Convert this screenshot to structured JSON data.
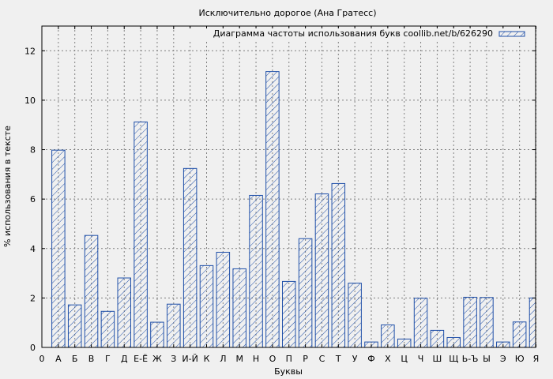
{
  "chart_data": {
    "type": "bar",
    "title": "Исключительно дорогое (Ана Гратесс)",
    "xlabel": "Буквы",
    "ylabel": "% использования в тексте",
    "legend": "Диаграмма частоты использования букв coollib.net/b/626290",
    "legend_position": "top-right",
    "grid": true,
    "ylim": [
      0,
      13
    ],
    "yticks": [
      0,
      2,
      4,
      6,
      8,
      10,
      12
    ],
    "x_zero_label": "0",
    "categories": [
      "А",
      "Б",
      "В",
      "Г",
      "Д",
      "Е-Ё",
      "Ж",
      "З",
      "И-Й",
      "К",
      "Л",
      "М",
      "Н",
      "О",
      "П",
      "Р",
      "С",
      "Т",
      "У",
      "Ф",
      "Х",
      "Ц",
      "Ч",
      "Ш",
      "Щ",
      "Ь-Ъ",
      "Ы",
      "Э",
      "Ю",
      "Я"
    ],
    "values": [
      7.98,
      1.72,
      4.53,
      1.46,
      2.81,
      9.12,
      1.02,
      1.75,
      7.24,
      3.31,
      3.85,
      3.18,
      6.15,
      11.16,
      2.67,
      4.4,
      6.21,
      6.63,
      2.6,
      0.22,
      0.91,
      0.34,
      1.99,
      0.69,
      0.4,
      2.03,
      2.02,
      0.22,
      1.03,
      2.0
    ]
  }
}
